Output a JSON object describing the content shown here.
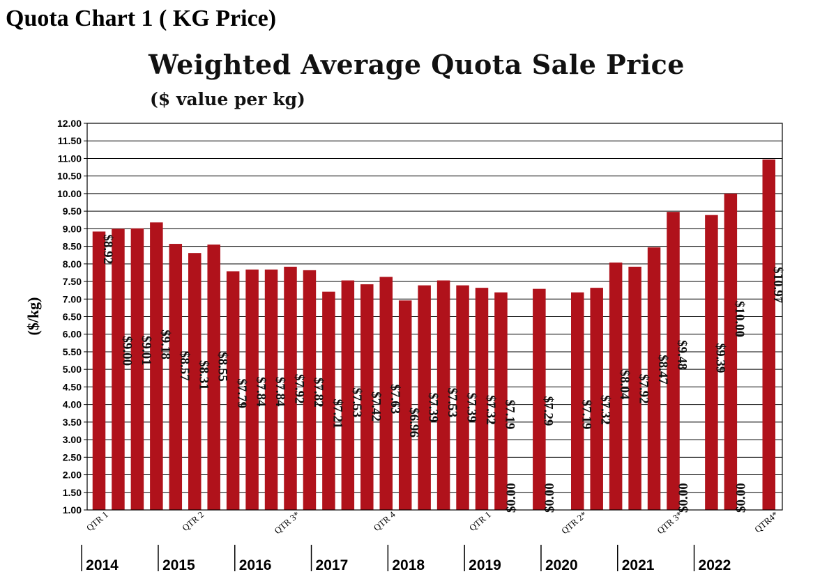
{
  "page_title": "Quota Chart 1 ( KG Price)",
  "chart_data": {
    "type": "bar",
    "title": "Weighted Average Quota Sale Price",
    "subtitle": "($ value per kg)",
    "ylabel": "($/kg)",
    "xlabel": "",
    "ylim": [
      1.0,
      12.0
    ],
    "y_ticks": [
      "1.00",
      "1.50",
      "2.00",
      "2.50",
      "3.00",
      "3.50",
      "4.00",
      "4.50",
      "5.00",
      "5.50",
      "6.00",
      "6.50",
      "7.00",
      "7.50",
      "8.00",
      "8.50",
      "9.00",
      "9.50",
      "10.00",
      "10.50",
      "11.00",
      "11.50",
      "12.00"
    ],
    "grid": true,
    "bar_color": "#b0121b",
    "values": [
      8.92,
      9.0,
      9.01,
      9.18,
      8.57,
      8.31,
      8.55,
      7.79,
      7.84,
      7.84,
      7.92,
      7.82,
      7.21,
      7.53,
      7.42,
      7.63,
      6.96,
      7.39,
      7.53,
      7.39,
      7.32,
      7.19,
      0.0,
      7.29,
      0.0,
      7.19,
      7.32,
      8.04,
      7.92,
      8.47,
      9.48,
      0.0,
      9.39,
      10.0,
      0.0,
      10.97
    ],
    "value_labels": [
      "$8.92",
      "$9.00",
      "$9.01",
      "$9.18",
      "$8.57",
      "$8.31",
      "$8.55",
      "$7.79",
      "$7.84",
      "$7.84",
      "$7.92",
      "$7.82",
      "$7.21",
      "$7.53",
      "$7.42",
      "$7.63",
      "$6.96",
      "$7.39",
      "$7.53",
      "$7.39",
      "$7.32",
      "$7.19",
      "$0.00",
      "$7.29",
      "$0.00",
      "$7.19",
      "$7.32",
      "$8.04",
      "$7.92",
      "$8.47",
      "$9.48",
      "$0.00",
      "$9.39",
      "$10.00",
      "$0.00",
      "$10.97"
    ],
    "quarter_labels": [
      {
        "bar": 0,
        "text": "QTR 1"
      },
      {
        "bar": 5,
        "text": "QTR 2"
      },
      {
        "bar": 10,
        "text": "QTR 3*"
      },
      {
        "bar": 15,
        "text": "QTR 4"
      },
      {
        "bar": 20,
        "text": "QTR 1"
      },
      {
        "bar": 25,
        "text": "QTR 2*"
      },
      {
        "bar": 30,
        "text": "QTR 3*"
      },
      {
        "bar": 35,
        "text": "QTR4*"
      }
    ],
    "years": [
      {
        "text": "2014",
        "start_bar": 0
      },
      {
        "text": "2015",
        "start_bar": 4
      },
      {
        "text": "2016",
        "start_bar": 8
      },
      {
        "text": "2017",
        "start_bar": 12
      },
      {
        "text": "2018",
        "start_bar": 16
      },
      {
        "text": "2019",
        "start_bar": 20
      },
      {
        "text": "2020",
        "start_bar": 24
      },
      {
        "text": "2021",
        "start_bar": 28
      },
      {
        "text": "2022",
        "start_bar": 32
      }
    ]
  }
}
